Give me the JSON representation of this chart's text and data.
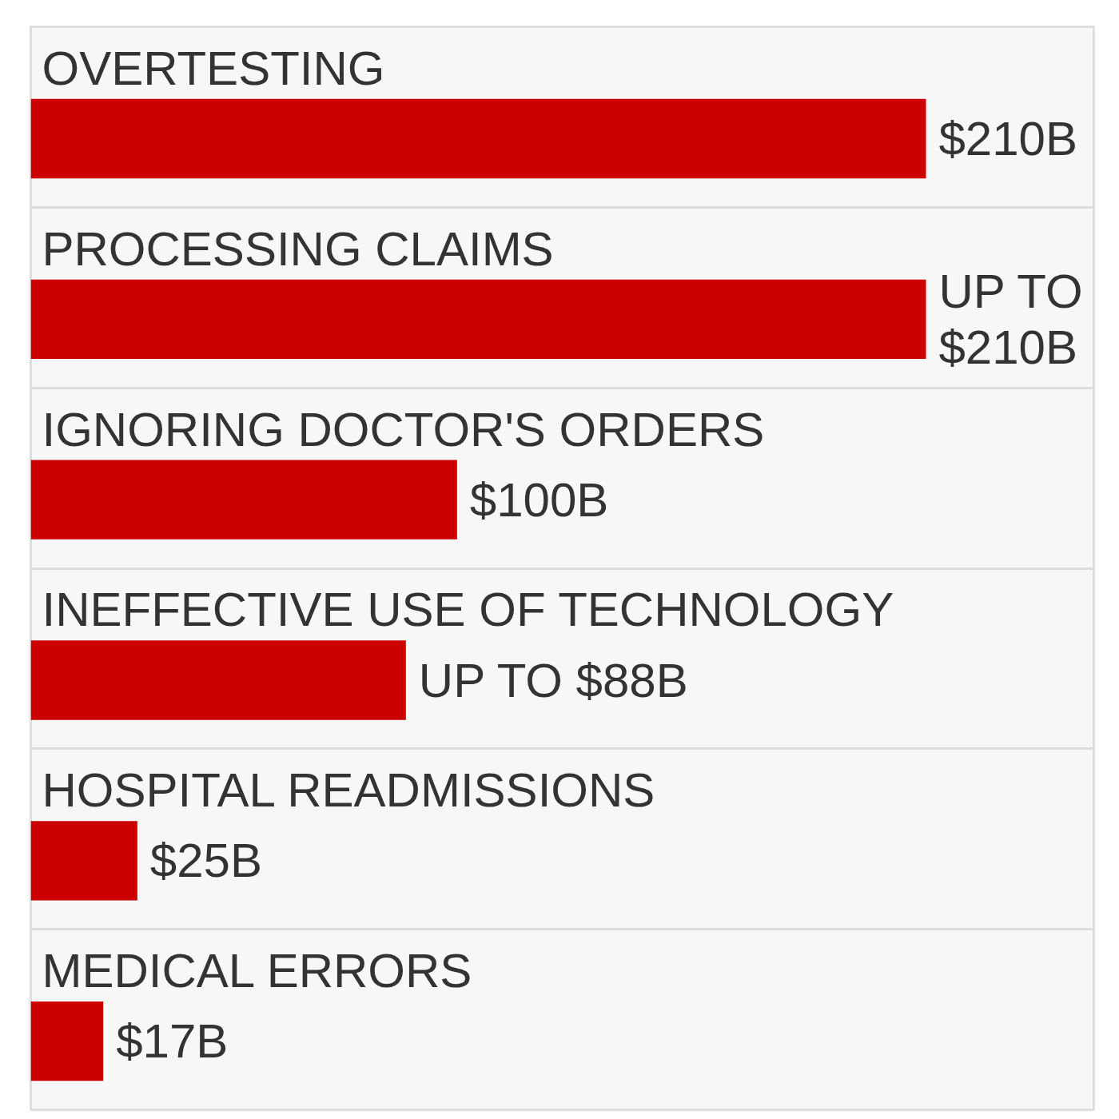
{
  "chart_data": {
    "type": "bar",
    "orientation": "horizontal",
    "categories": [
      "OVERTESTING",
      "PROCESSING CLAIMS",
      "IGNORING DOCTOR'S ORDERS",
      "INEFFECTIVE USE OF TECHNOLOGY",
      "HOSPITAL READMISSIONS",
      "MEDICAL ERRORS"
    ],
    "values": [
      210,
      210,
      100,
      88,
      25,
      17
    ],
    "value_labels": [
      "$210B",
      "UP TO $210B",
      "$100B",
      "UP TO $88B",
      "$25B",
      "$17B"
    ],
    "color": "#cc0000",
    "grid": "y"
  }
}
